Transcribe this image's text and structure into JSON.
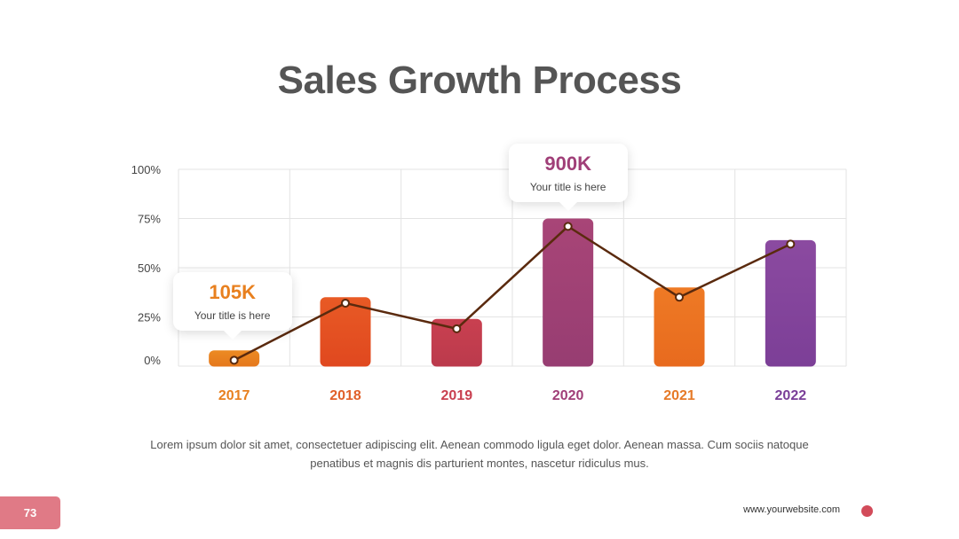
{
  "slide": {
    "title": "Sales Growth Process",
    "description": "Lorem ipsum dolor sit amet, consectetuer adipiscing elit. Aenean commodo ligula eget dolor. Aenean massa. Cum sociis natoque penatibus et magnis dis parturient montes, nascetur ridiculus mus.",
    "page_number": "73",
    "website": "www.yourwebsite.com"
  },
  "callouts": [
    {
      "value": "105K",
      "subtitle": "Your title is here",
      "color": "#e8801f",
      "category": "2017"
    },
    {
      "value": "900K",
      "subtitle": "Your title is here",
      "color": "#a03f78",
      "category": "2020"
    }
  ],
  "chart_data": {
    "type": "bar",
    "categories": [
      "2017",
      "2018",
      "2019",
      "2020",
      "2021",
      "2022"
    ],
    "series": [
      {
        "type": "bar",
        "values": [
          8,
          35,
          24,
          75,
          40,
          64
        ]
      },
      {
        "type": "line",
        "values": [
          3,
          32,
          19,
          71,
          35,
          62
        ]
      }
    ],
    "y_ticks": [
      "0%",
      "25%",
      "50%",
      "75%",
      "100%"
    ],
    "ylim": [
      0,
      100
    ],
    "grid": true,
    "colors": {
      "bars": [
        "#ec8a23",
        "#e85a25",
        "#c94050",
        "#a84577",
        "#ee7a25",
        "#8b4aa0"
      ],
      "bar_gradient_end": [
        "#e5781c",
        "#e0481f",
        "#bb3a4c",
        "#973d72",
        "#e86a1e",
        "#7c3f97"
      ],
      "labels": [
        "#e8801f",
        "#e0602a",
        "#c94050",
        "#a03f78",
        "#e67a28",
        "#7a3f98"
      ],
      "line": "#5a2a0e",
      "grid": "#e3e3e3",
      "tick_text": "#444444"
    }
  }
}
